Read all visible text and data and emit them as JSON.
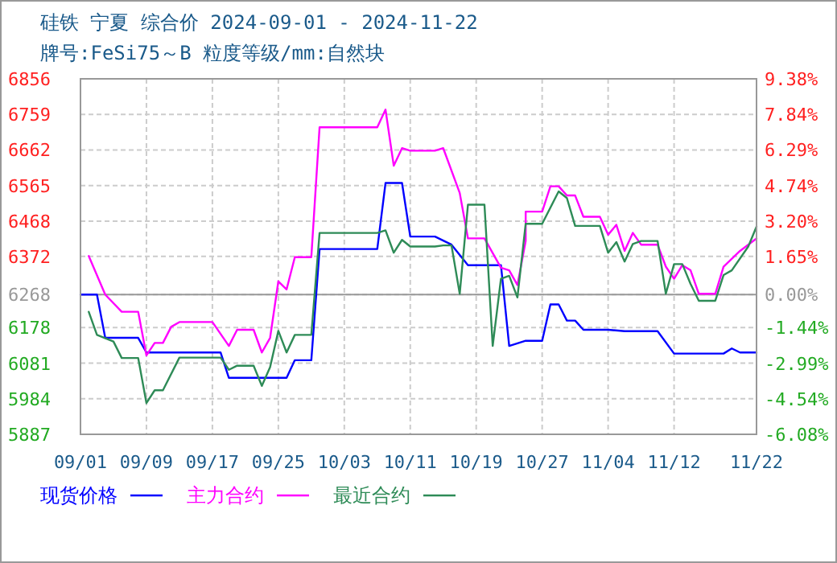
{
  "chart_data": {
    "type": "line",
    "title": "硅铁  宁夏  综合价  2024-09-01 - 2024-11-22",
    "subtitle": "牌号:FeSi75～B 粒度等级/mm:自然块",
    "xlim": [
      "2024-09-01",
      "2024-11-22"
    ],
    "xticks": [
      {
        "value": "2024-09-01",
        "label": "09/01"
      },
      {
        "value": "2024-09-09",
        "label": "09/09"
      },
      {
        "value": "2024-09-17",
        "label": "09/17"
      },
      {
        "value": "2024-09-25",
        "label": "09/25"
      },
      {
        "value": "2024-10-03",
        "label": "10/03"
      },
      {
        "value": "2024-10-11",
        "label": "10/11"
      },
      {
        "value": "2024-10-19",
        "label": "10/19"
      },
      {
        "value": "2024-10-27",
        "label": "10/27"
      },
      {
        "value": "2024-11-04",
        "label": "11/04"
      },
      {
        "value": "2024-11-12",
        "label": "11/12"
      },
      {
        "value": "2024-11-22",
        "label": "11/22"
      }
    ],
    "ylim": [
      5887,
      6856
    ],
    "yticks": [
      5887,
      5984,
      6081,
      6178,
      6268,
      6372,
      6468,
      6565,
      6662,
      6759,
      6856
    ],
    "y2lim": [
      -6.08,
      9.38
    ],
    "y2ticks": [
      {
        "value": -6.08,
        "label": "-6.08%"
      },
      {
        "value": -4.54,
        "label": "-4.54%"
      },
      {
        "value": -2.99,
        "label": "-2.99%"
      },
      {
        "value": -1.44,
        "label": "-1.44%"
      },
      {
        "value": 0,
        "label": "0.00%"
      },
      {
        "value": 1.65,
        "label": "1.65%"
      },
      {
        "value": 3.2,
        "label": "3.20%"
      },
      {
        "value": 4.74,
        "label": "4.74%"
      },
      {
        "value": 6.29,
        "label": "6.29%"
      },
      {
        "value": 7.84,
        "label": "7.84%"
      },
      {
        "value": 9.38,
        "label": "9.38%"
      }
    ],
    "ref_lines": [
      {
        "axis": "y",
        "value": 6268,
        "color": "#999999"
      }
    ],
    "grid": true,
    "legend": "bottom",
    "series": [
      {
        "name": "现货价格",
        "color": "#0000ff",
        "x": [
          "2024-09-01",
          "2024-09-03",
          "2024-09-04",
          "2024-09-08",
          "2024-09-09",
          "2024-09-18",
          "2024-09-19",
          "2024-09-26",
          "2024-09-27",
          "2024-09-29",
          "2024-09-30",
          "2024-10-07",
          "2024-10-08",
          "2024-10-10",
          "2024-10-11",
          "2024-10-14",
          "2024-10-16",
          "2024-10-18",
          "2024-10-22",
          "2024-10-23",
          "2024-10-25",
          "2024-10-27",
          "2024-10-28",
          "2024-10-29",
          "2024-10-30",
          "2024-10-31",
          "2024-11-01",
          "2024-11-04",
          "2024-11-06",
          "2024-11-10",
          "2024-11-12",
          "2024-11-18",
          "2024-11-19",
          "2024-11-20",
          "2024-11-22"
        ],
        "values": [
          6268,
          6268,
          6150,
          6150,
          6110,
          6110,
          6041,
          6041,
          6089,
          6089,
          6392,
          6392,
          6572,
          6572,
          6426,
          6426,
          6404,
          6348,
          6348,
          6128,
          6142,
          6142,
          6241,
          6241,
          6197,
          6197,
          6172,
          6172,
          6168,
          6168,
          6107,
          6107,
          6121,
          6110,
          6110
        ]
      },
      {
        "name": "主力合约",
        "color": "#ff00ff",
        "x": [
          "2024-09-02",
          "2024-09-04",
          "2024-09-06",
          "2024-09-08",
          "2024-09-09",
          "2024-09-10",
          "2024-09-11",
          "2024-09-12",
          "2024-09-13",
          "2024-09-17",
          "2024-09-19",
          "2024-09-20",
          "2024-09-22",
          "2024-09-23",
          "2024-09-24",
          "2024-09-25",
          "2024-09-26",
          "2024-09-27",
          "2024-09-29",
          "2024-09-30",
          "2024-10-07",
          "2024-10-08",
          "2024-10-09",
          "2024-10-10",
          "2024-10-11",
          "2024-10-14",
          "2024-10-15",
          "2024-10-17",
          "2024-10-18",
          "2024-10-20",
          "2024-10-22",
          "2024-10-23",
          "2024-10-24",
          "2024-10-25",
          "2024-10-25",
          "2024-10-27",
          "2024-10-28",
          "2024-10-29",
          "2024-10-30",
          "2024-10-31",
          "2024-11-01",
          "2024-11-03",
          "2024-11-04",
          "2024-11-05",
          "2024-11-06",
          "2024-11-07",
          "2024-11-08",
          "2024-11-10",
          "2024-11-11",
          "2024-11-12",
          "2024-11-13",
          "2024-11-14",
          "2024-11-15",
          "2024-11-17",
          "2024-11-18",
          "2024-11-20",
          "2024-11-22"
        ],
        "values": [
          6373,
          6268,
          6221,
          6221,
          6102,
          6136,
          6136,
          6180,
          6193,
          6193,
          6128,
          6172,
          6172,
          6110,
          6150,
          6304,
          6282,
          6370,
          6370,
          6724,
          6724,
          6772,
          6619,
          6667,
          6660,
          6660,
          6667,
          6545,
          6421,
          6421,
          6341,
          6334,
          6294,
          6414,
          6494,
          6494,
          6563,
          6563,
          6538,
          6538,
          6480,
          6480,
          6431,
          6458,
          6387,
          6436,
          6404,
          6404,
          6344,
          6311,
          6348,
          6334,
          6270,
          6270,
          6344,
          6387,
          6421
        ]
      },
      {
        "name": "最近合约",
        "color": "#2e8b57",
        "x": [
          "2024-09-02",
          "2024-09-03",
          "2024-09-05",
          "2024-09-06",
          "2024-09-08",
          "2024-09-09",
          "2024-09-10",
          "2024-09-11",
          "2024-09-13",
          "2024-09-18",
          "2024-09-19",
          "2024-09-20",
          "2024-09-22",
          "2024-09-23",
          "2024-09-24",
          "2024-09-25",
          "2024-09-26",
          "2024-09-27",
          "2024-09-29",
          "2024-09-30",
          "2024-10-07",
          "2024-10-08",
          "2024-10-09",
          "2024-10-10",
          "2024-10-11",
          "2024-10-14",
          "2024-10-15",
          "2024-10-16",
          "2024-10-17",
          "2024-10-18",
          "2024-10-20",
          "2024-10-21",
          "2024-10-22",
          "2024-10-23",
          "2024-10-24",
          "2024-10-25",
          "2024-10-27",
          "2024-10-29",
          "2024-10-30",
          "2024-10-31",
          "2024-11-03",
          "2024-11-04",
          "2024-11-05",
          "2024-11-06",
          "2024-11-07",
          "2024-11-08",
          "2024-11-10",
          "2024-11-11",
          "2024-11-12",
          "2024-11-13",
          "2024-11-14",
          "2024-11-15",
          "2024-11-17",
          "2024-11-18",
          "2024-11-19",
          "2024-11-21",
          "2024-11-22"
        ],
        "values": [
          6221,
          6158,
          6140,
          6095,
          6095,
          5972,
          6007,
          6007,
          6096,
          6096,
          6063,
          6074,
          6074,
          6019,
          6070,
          6169,
          6110,
          6158,
          6158,
          6436,
          6436,
          6443,
          6382,
          6417,
          6399,
          6399,
          6402,
          6402,
          6270,
          6513,
          6513,
          6128,
          6311,
          6319,
          6260,
          6461,
          6461,
          6549,
          6531,
          6455,
          6455,
          6382,
          6411,
          6358,
          6406,
          6414,
          6414,
          6270,
          6351,
          6351,
          6297,
          6251,
          6251,
          6321,
          6334,
          6399,
          6453
        ]
      }
    ]
  }
}
